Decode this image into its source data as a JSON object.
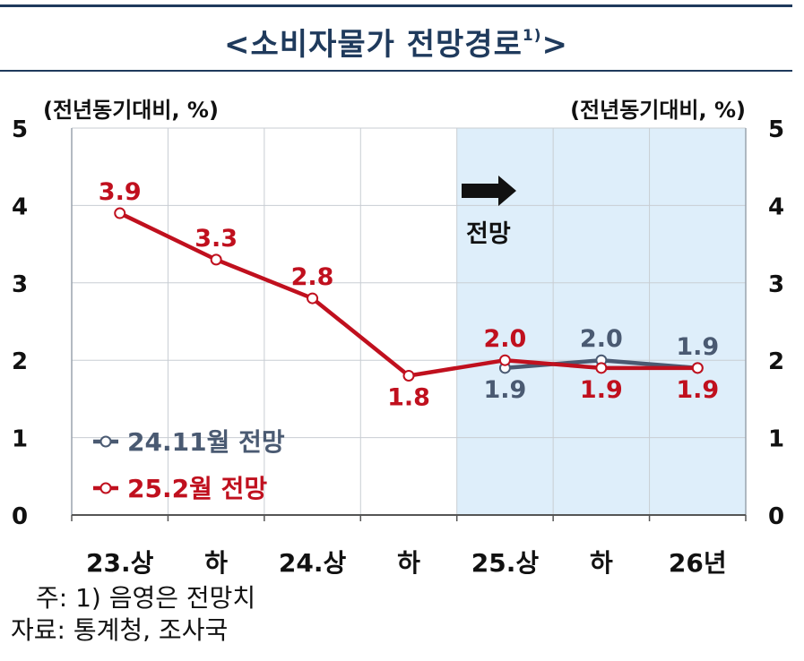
{
  "title": {
    "main": "<소비자물가 전망경로",
    "sup": "1)",
    "end": ">"
  },
  "chart_data": {
    "type": "line",
    "title": "<소비자물가 전망경로1)>",
    "ylabel_left": "(전년동기대비, %)",
    "ylabel_right": "(전년동기대비, %)",
    "ylim": [
      0,
      5
    ],
    "yticks": [
      "0",
      "1",
      "2",
      "3",
      "4",
      "5"
    ],
    "categories": [
      "23.상",
      "하",
      "24.상",
      "하",
      "25.상",
      "하",
      "26년"
    ],
    "grid": true,
    "shaded_region": {
      "from": "25.상",
      "to": "26년",
      "color": "#deeefa"
    },
    "forecast_label": "전망",
    "legend_position": "left-bottom",
    "series": [
      {
        "name": "24.11월 전망",
        "color": "#4a5a72",
        "values": [
          null,
          null,
          null,
          null,
          1.9,
          2.0,
          1.9
        ],
        "labels": [
          "",
          "",
          "",
          "",
          "1.9",
          "2.0",
          "1.9"
        ],
        "label_pos": [
          "",
          "",
          "",
          "",
          "below",
          "above",
          "above"
        ]
      },
      {
        "name": "25.2월 전망",
        "color": "#c0101e",
        "values": [
          3.9,
          3.3,
          2.8,
          1.8,
          2.0,
          1.9,
          1.9
        ],
        "labels": [
          "3.9",
          "3.3",
          "2.8",
          "1.8",
          "2.0",
          "1.9",
          "1.9"
        ],
        "label_pos": [
          "above",
          "above",
          "above",
          "below",
          "above",
          "below",
          "below"
        ]
      }
    ]
  },
  "notes": {
    "line1": "주: 1) 음영은 전망치",
    "line2": "자료: 통계청, 조사국"
  }
}
